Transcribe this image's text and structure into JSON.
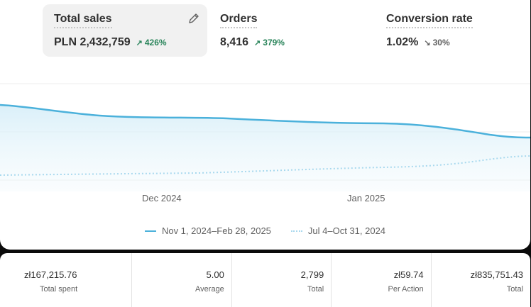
{
  "metrics": [
    {
      "label": "Total sales",
      "value": "PLN 2,432,759",
      "delta": "426%",
      "direction": "up",
      "icon": "pencil-icon"
    },
    {
      "label": "Orders",
      "value": "8,416",
      "delta": "379%",
      "direction": "up"
    },
    {
      "label": "Conversion rate",
      "value": "1.02%",
      "delta": "30%",
      "direction": "down"
    }
  ],
  "chart_data": {
    "type": "line",
    "x_ticks": [
      "Dec 2024",
      "Jan 2025"
    ],
    "series": [
      {
        "name": "Nov 1, 2024–Feb 28, 2025",
        "style": "solid",
        "color": "#4bb1db"
      },
      {
        "name": "Jul 4–Oct 31, 2024",
        "style": "dotted",
        "color": "#a9d9ee"
      }
    ],
    "grid": true
  },
  "stats": [
    {
      "value": "zł167,215.76",
      "label": "Total spent"
    },
    {
      "value": "5.00",
      "label": "Average"
    },
    {
      "value": "2,799",
      "label": "Total"
    },
    {
      "value": "zł59.74",
      "label": "Per Action"
    },
    {
      "value": "zł835,751.43",
      "label": "Total"
    }
  ],
  "colors": {
    "accent": "#4bb1db",
    "positive": "#29845a",
    "background": "#ffffff"
  }
}
